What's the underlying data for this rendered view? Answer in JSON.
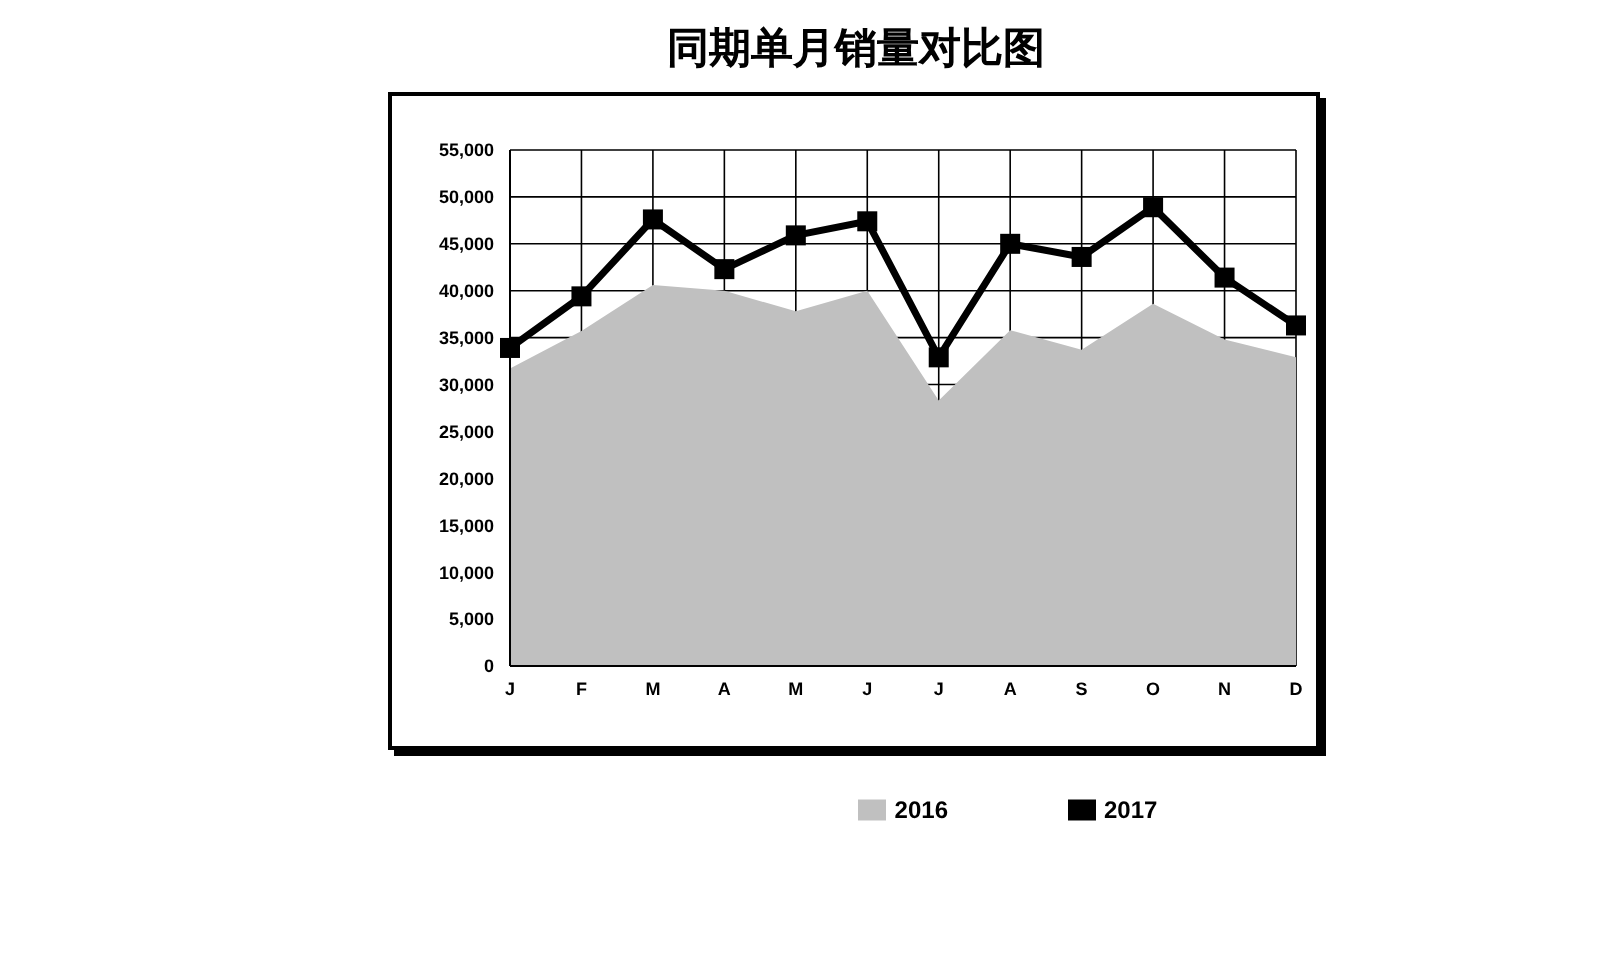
{
  "chart_data": {
    "type": "line",
    "title": "同期单月销量对比图",
    "categories": [
      "J",
      "F",
      "M",
      "A",
      "M",
      "J",
      "J",
      "A",
      "S",
      "O",
      "N",
      "D"
    ],
    "series": [
      {
        "name": "2016",
        "type": "area",
        "color": "#c0c0c0",
        "values": [
          31700,
          35700,
          40600,
          40000,
          37800,
          40000,
          28300,
          35800,
          33700,
          38600,
          34800,
          32900
        ]
      },
      {
        "name": "2017",
        "color": "#000000",
        "marker": "square",
        "values": [
          33900,
          39400,
          47600,
          42300,
          45900,
          47400,
          32900,
          45000,
          43600,
          48900,
          41400,
          36300
        ]
      }
    ],
    "ylim": [
      0,
      55000
    ],
    "yticks": [
      0,
      {
        "value": 5000,
        "label": "5,000"
      },
      {
        "value": 10000,
        "label": "10,000"
      },
      {
        "value": 15000,
        "label": "15,000"
      },
      {
        "value": 20000,
        "label": "20,000"
      },
      {
        "value": 25000,
        "label": "25,000"
      },
      {
        "value": 30000,
        "label": "30,000"
      },
      {
        "value": 35000,
        "label": "35,000"
      },
      {
        "value": 40000,
        "label": "40,000"
      },
      {
        "value": 45000,
        "label": "45,000"
      },
      {
        "value": 50000,
        "label": "50,000"
      },
      {
        "value": 55000,
        "label": "55,000"
      }
    ],
    "grid": true,
    "legend": "bottom"
  }
}
